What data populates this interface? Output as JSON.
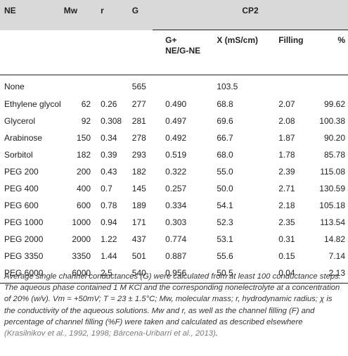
{
  "headers": {
    "ne": "NE",
    "mw": "Mw",
    "r": "r",
    "g": "G",
    "cp2": "CP2",
    "g_ratio_line1": "G+",
    "g_ratio_line2": "NE/G-NE",
    "x": "X (mS/cm)",
    "filling": "Filling",
    "pct": "%"
  },
  "rows": [
    {
      "ne": "None",
      "mw": "",
      "r": "",
      "g": "565",
      "ratio": "",
      "x": "103.5",
      "filling": "",
      "pct": ""
    },
    {
      "ne": "Ethylene glycol",
      "mw": "62",
      "r": "0.26",
      "g": "277",
      "ratio": "0.490",
      "x": "68.8",
      "filling": "2.07",
      "pct": "99.62"
    },
    {
      "ne": "Glycerol",
      "mw": "92",
      "r": "0.308",
      "g": "281",
      "ratio": "0.497",
      "x": "69.6",
      "filling": "2.08",
      "pct": "100.38"
    },
    {
      "ne": "Arabinose",
      "mw": "150",
      "r": "0.34",
      "g": "278",
      "ratio": "0.492",
      "x": "66.7",
      "filling": "1.87",
      "pct": "90.20"
    },
    {
      "ne": "Sorbitol",
      "mw": "182",
      "r": "0.39",
      "g": "293",
      "ratio": "0.519",
      "x": "68.0",
      "filling": "1.78",
      "pct": "85.78"
    },
    {
      "ne": "PEG 200",
      "mw": "200",
      "r": "0.43",
      "g": "182",
      "ratio": "0.322",
      "x": "55.0",
      "filling": "2.39",
      "pct": "115.08"
    },
    {
      "ne": "PEG 400",
      "mw": "400",
      "r": "0.7",
      "g": "145",
      "ratio": "0.257",
      "x": "50.0",
      "filling": "2.71",
      "pct": "130.59"
    },
    {
      "ne": "PEG 600",
      "mw": "600",
      "r": "0.78",
      "g": "189",
      "ratio": "0.334",
      "x": "54.1",
      "filling": "2.18",
      "pct": "105.18"
    },
    {
      "ne": "PEG 1000",
      "mw": "1000",
      "r": "0.94",
      "g": "171",
      "ratio": "0.303",
      "x": "52.3",
      "filling": "2.35",
      "pct": "113.54"
    },
    {
      "ne": "PEG 2000",
      "mw": "2000",
      "r": "1.22",
      "g": "437",
      "ratio": "0.774",
      "x": "53.1",
      "filling": "0.31",
      "pct": "14.82"
    },
    {
      "ne": "PEG 3350",
      "mw": "3350",
      "r": "1.44",
      "g": "501",
      "ratio": "0.887",
      "x": "55.6",
      "filling": "0.15",
      "pct": "7.14"
    },
    {
      "ne": "PEG 6000",
      "mw": "6000",
      "r": "2.5",
      "g": "540",
      "ratio": "0.956",
      "x": "50.5",
      "filling": "0.04",
      "pct": "2.13"
    }
  ],
  "footnote": {
    "text": "Average single channel conductances (G) were calculated from at least 100 conductance steps. The aqueous phase contained 1 M KCl and the corresponding nonelectrolyte at a concentration of 20% (w/v). Vm = +50mV; T = 23 ± 1.5°C; Mw, molecular mass; r, hydrodynamic radius; χ is the conductivity of the aqueous solutions. Mw and r, as well as the channel filling (F) and percentage of channel filling (%F) were taken and calculated as described elsewhere ",
    "refs": "(Krasilnikov et al., 1992, 1998; Bárcena-Uribarri et al., 2013)",
    "end": "."
  }
}
